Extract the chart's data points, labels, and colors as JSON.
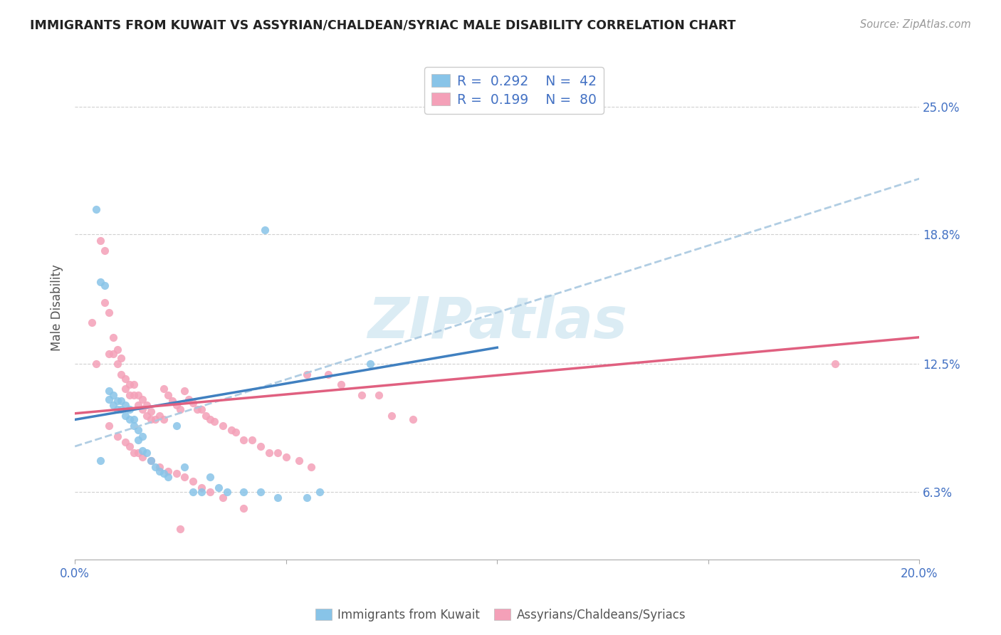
{
  "title": "IMMIGRANTS FROM KUWAIT VS ASSYRIAN/CHALDEAN/SYRIAC MALE DISABILITY CORRELATION CHART",
  "source": "Source: ZipAtlas.com",
  "ylabel": "Male Disability",
  "ytick_labels": [
    "6.3%",
    "12.5%",
    "18.8%",
    "25.0%"
  ],
  "ytick_values": [
    0.063,
    0.125,
    0.188,
    0.25
  ],
  "xmin": 0.0,
  "xmax": 0.2,
  "ymin": 0.03,
  "ymax": 0.275,
  "legend1_label": "Immigrants from Kuwait",
  "legend2_label": "Assyrians/Chaldeans/Syriacs",
  "r1": 0.292,
  "n1": 42,
  "r2": 0.199,
  "n2": 80,
  "color_blue": "#88c4e8",
  "color_pink": "#f4a0b8",
  "color_blue_line": "#4080c0",
  "color_pink_line": "#e06080",
  "color_dashed": "#a8c8e0",
  "watermark_color": "#cce4f0",
  "blue_line_x": [
    0.0,
    0.1
  ],
  "blue_line_y": [
    0.098,
    0.133
  ],
  "pink_line_x": [
    0.0,
    0.2
  ],
  "pink_line_y": [
    0.101,
    0.138
  ],
  "dashed_line_x": [
    0.0,
    0.2
  ],
  "dashed_line_y": [
    0.085,
    0.215
  ],
  "blue_x": [
    0.005,
    0.006,
    0.007,
    0.008,
    0.008,
    0.009,
    0.009,
    0.01,
    0.01,
    0.011,
    0.011,
    0.012,
    0.012,
    0.013,
    0.013,
    0.014,
    0.014,
    0.015,
    0.015,
    0.016,
    0.016,
    0.017,
    0.018,
    0.019,
    0.02,
    0.021,
    0.022,
    0.024,
    0.026,
    0.028,
    0.03,
    0.032,
    0.034,
    0.036,
    0.04,
    0.044,
    0.048,
    0.055,
    0.058,
    0.07,
    0.006,
    0.045
  ],
  "blue_y": [
    0.2,
    0.165,
    0.163,
    0.112,
    0.108,
    0.11,
    0.105,
    0.107,
    0.103,
    0.107,
    0.103,
    0.105,
    0.1,
    0.103,
    0.098,
    0.098,
    0.095,
    0.093,
    0.088,
    0.09,
    0.083,
    0.082,
    0.078,
    0.075,
    0.073,
    0.072,
    0.07,
    0.095,
    0.075,
    0.063,
    0.063,
    0.07,
    0.065,
    0.063,
    0.063,
    0.063,
    0.06,
    0.06,
    0.063,
    0.125,
    0.078,
    0.19
  ],
  "pink_x": [
    0.004,
    0.005,
    0.006,
    0.007,
    0.007,
    0.008,
    0.008,
    0.009,
    0.009,
    0.01,
    0.01,
    0.011,
    0.011,
    0.012,
    0.012,
    0.013,
    0.013,
    0.014,
    0.014,
    0.015,
    0.015,
    0.016,
    0.016,
    0.017,
    0.017,
    0.018,
    0.018,
    0.019,
    0.02,
    0.021,
    0.021,
    0.022,
    0.023,
    0.024,
    0.025,
    0.026,
    0.027,
    0.028,
    0.029,
    0.03,
    0.031,
    0.032,
    0.033,
    0.035,
    0.037,
    0.038,
    0.04,
    0.042,
    0.044,
    0.046,
    0.048,
    0.05,
    0.053,
    0.056,
    0.06,
    0.063,
    0.068,
    0.072,
    0.075,
    0.08,
    0.008,
    0.01,
    0.012,
    0.013,
    0.014,
    0.015,
    0.016,
    0.018,
    0.02,
    0.022,
    0.024,
    0.026,
    0.028,
    0.03,
    0.032,
    0.035,
    0.04,
    0.055,
    0.025,
    0.18
  ],
  "pink_y": [
    0.145,
    0.125,
    0.185,
    0.18,
    0.155,
    0.15,
    0.13,
    0.138,
    0.13,
    0.132,
    0.125,
    0.128,
    0.12,
    0.118,
    0.113,
    0.115,
    0.11,
    0.115,
    0.11,
    0.11,
    0.105,
    0.108,
    0.103,
    0.105,
    0.1,
    0.102,
    0.098,
    0.098,
    0.1,
    0.098,
    0.113,
    0.11,
    0.107,
    0.105,
    0.103,
    0.112,
    0.108,
    0.106,
    0.103,
    0.103,
    0.1,
    0.098,
    0.097,
    0.095,
    0.093,
    0.092,
    0.088,
    0.088,
    0.085,
    0.082,
    0.082,
    0.08,
    0.078,
    0.075,
    0.12,
    0.115,
    0.11,
    0.11,
    0.1,
    0.098,
    0.095,
    0.09,
    0.087,
    0.085,
    0.082,
    0.082,
    0.08,
    0.078,
    0.075,
    0.073,
    0.072,
    0.07,
    0.068,
    0.065,
    0.063,
    0.06,
    0.055,
    0.12,
    0.045,
    0.125
  ]
}
